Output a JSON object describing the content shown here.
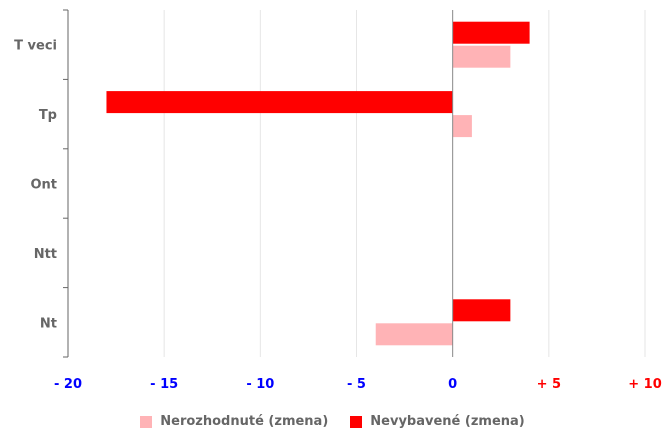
{
  "chart_data": {
    "type": "bar",
    "orientation": "horizontal",
    "categories": [
      "T veci",
      "Tp",
      "Ont",
      "Ntt",
      "Nt"
    ],
    "series": [
      {
        "name": "Nevybavené (zmena)",
        "color": "#ff0000",
        "values": [
          4,
          -18,
          0,
          0,
          3
        ]
      },
      {
        "name": "Nerozhodnuté (zmena)",
        "color": "#ffb3b6",
        "values": [
          3,
          1,
          0,
          0,
          -4
        ]
      }
    ],
    "xlim": [
      -20,
      10
    ],
    "x_ticks": [
      {
        "value": -20,
        "label": "- 20",
        "color": "#0000ff"
      },
      {
        "value": -15,
        "label": "- 15",
        "color": "#0000ff"
      },
      {
        "value": -10,
        "label": "- 10",
        "color": "#0000ff"
      },
      {
        "value": -5,
        "label": "- 5",
        "color": "#0000ff"
      },
      {
        "value": 0,
        "label": "0",
        "color": "#0000ff"
      },
      {
        "value": 5,
        "label": "+ 5",
        "color": "#ff0000"
      },
      {
        "value": 10,
        "label": "+ 10",
        "color": "#ff0000"
      }
    ],
    "grid": true,
    "legend_position": "bottom",
    "legend_order": [
      "Nerozhodnuté (zmena)",
      "Nevybavené (zmena)"
    ],
    "colors": {
      "axis": "#666666",
      "grid": "#e6e6e6",
      "zero_line": "#888888",
      "category_label": "#666666"
    }
  }
}
